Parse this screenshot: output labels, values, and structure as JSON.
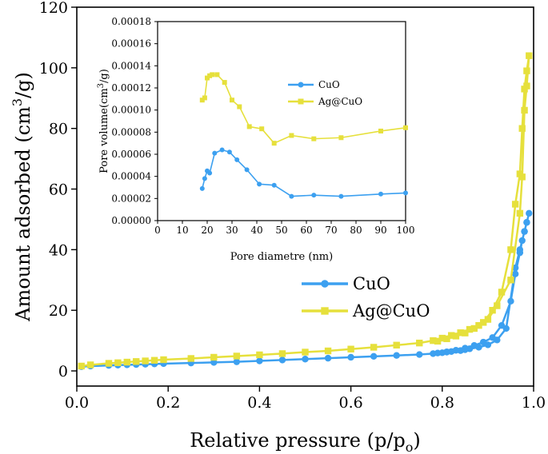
{
  "chart_data": [
    {
      "type": "line",
      "name": "isotherm",
      "xlabel": "Relative pressure (p/p",
      "xlabel_sub": "o",
      "xlabel_end": ")",
      "ylabel": "Amount adsorbed (cm",
      "ylabel_sup": "3",
      "ylabel_end": "/g)",
      "xlim": [
        0.0,
        1.0
      ],
      "ylim": [
        -5,
        120
      ],
      "xticks": [
        "0.0",
        "0.2",
        "0.4",
        "0.6",
        "0.8",
        "1.0"
      ],
      "xtick_values": [
        0.0,
        0.2,
        0.4,
        0.6,
        0.8,
        1.0
      ],
      "yticks": [
        "0",
        "20",
        "40",
        "60",
        "80",
        "100",
        "120"
      ],
      "ytick_values": [
        0,
        20,
        40,
        60,
        80,
        100,
        120
      ],
      "legend_position": "lower-right",
      "series": [
        {
          "name": "CuO",
          "color": "#3ca0f0",
          "marker": "circle",
          "x": [
            0.01,
            0.03,
            0.07,
            0.09,
            0.11,
            0.13,
            0.15,
            0.17,
            0.19,
            0.25,
            0.3,
            0.35,
            0.4,
            0.45,
            0.5,
            0.55,
            0.6,
            0.65,
            0.7,
            0.75,
            0.78,
            0.8,
            0.81,
            0.82,
            0.84,
            0.85,
            0.86,
            0.88,
            0.9,
            0.92,
            0.94,
            0.96,
            0.97,
            0.98,
            0.985,
            0.99,
            0.985,
            0.98,
            0.975,
            0.97,
            0.96,
            0.95,
            0.93,
            0.91,
            0.89,
            0.87,
            0.85,
            0.83,
            0.81,
            0.79
          ],
          "y": [
            1.4,
            1.6,
            1.8,
            1.9,
            2.0,
            2.1,
            2.2,
            2.3,
            2.4,
            2.6,
            2.8,
            3.0,
            3.3,
            3.6,
            3.9,
            4.2,
            4.5,
            4.8,
            5.1,
            5.4,
            5.7,
            6.0,
            6.2,
            6.4,
            6.7,
            7.0,
            7.3,
            7.8,
            8.6,
            10.2,
            14.0,
            34.0,
            40.0,
            46.0,
            49.0,
            52.0,
            49.0,
            46.0,
            43.0,
            39.0,
            32.0,
            23.0,
            15.0,
            11.0,
            9.5,
            8.4,
            7.5,
            6.8,
            6.3,
            5.9
          ]
        },
        {
          "name": "Ag@CuO",
          "color": "#e6e03c",
          "marker": "square",
          "x": [
            0.01,
            0.03,
            0.07,
            0.09,
            0.11,
            0.13,
            0.15,
            0.17,
            0.19,
            0.25,
            0.3,
            0.35,
            0.4,
            0.45,
            0.5,
            0.55,
            0.6,
            0.65,
            0.7,
            0.75,
            0.78,
            0.8,
            0.82,
            0.84,
            0.86,
            0.88,
            0.9,
            0.92,
            0.95,
            0.97,
            0.975,
            0.98,
            0.985,
            0.99,
            0.985,
            0.98,
            0.975,
            0.97,
            0.96,
            0.95,
            0.93,
            0.91,
            0.89,
            0.87,
            0.85,
            0.83,
            0.81,
            0.79
          ],
          "y": [
            1.6,
            2.0,
            2.5,
            2.7,
            2.9,
            3.1,
            3.3,
            3.5,
            3.7,
            4.1,
            4.5,
            4.9,
            5.3,
            5.7,
            6.2,
            6.6,
            7.2,
            7.8,
            8.5,
            9.2,
            10.0,
            10.8,
            11.7,
            12.6,
            13.7,
            15.0,
            17.0,
            21.5,
            30.0,
            52.0,
            64.0,
            86.0,
            94.0,
            104.0,
            99.0,
            93.0,
            80.0,
            65.0,
            55.0,
            40.0,
            26.0,
            20.0,
            16.0,
            14.0,
            12.5,
            11.5,
            10.6,
            9.8
          ]
        }
      ]
    },
    {
      "type": "line",
      "name": "pore-size-inset",
      "xlabel": "Pore diametre (nm)",
      "ylabel": "Pore volume(cm",
      "ylabel_sup": "3",
      "ylabel_end": "/g)",
      "xlim": [
        0,
        100
      ],
      "ylim": [
        0,
        0.00018
      ],
      "xticks": [
        "0",
        "10",
        "20",
        "30",
        "40",
        "50",
        "60",
        "70",
        "80",
        "90",
        "100"
      ],
      "xtick_values": [
        0,
        10,
        20,
        30,
        40,
        50,
        60,
        70,
        80,
        90,
        100
      ],
      "yticks": [
        "0.00000",
        "0.00002",
        "0.00004",
        "0.00006",
        "0.00008",
        "0.00010",
        "0.00012",
        "0.00014",
        "0.00016",
        "0.00018"
      ],
      "ytick_values": [
        0,
        2e-05,
        4e-05,
        6e-05,
        8e-05,
        0.0001,
        0.00012,
        0.00014,
        0.00016,
        0.00018
      ],
      "legend_position": "top-right",
      "series": [
        {
          "name": "CuO",
          "color": "#3ca0f0",
          "marker": "circle",
          "x": [
            18,
            19,
            20,
            21,
            23,
            26,
            29,
            32,
            36,
            41,
            47,
            54,
            63,
            74,
            90,
            100
          ],
          "y": [
            2.9e-05,
            3.8e-05,
            4.5e-05,
            4.3e-05,
            6.1e-05,
            6.4e-05,
            6.2e-05,
            5.5e-05,
            4.6e-05,
            3.3e-05,
            3.2e-05,
            2.2e-05,
            2.3e-05,
            2.2e-05,
            2.4e-05,
            2.5e-05
          ]
        },
        {
          "name": "Ag@CuO",
          "color": "#e6e03c",
          "marker": "square",
          "x": [
            18,
            19,
            20,
            21,
            22,
            24,
            27,
            30,
            33,
            37,
            42,
            47,
            54,
            63,
            74,
            90,
            100
          ],
          "y": [
            0.000109,
            0.000111,
            0.000129,
            0.000131,
            0.000132,
            0.000132,
            0.000125,
            0.000109,
            0.000103,
            8.5e-05,
            8.3e-05,
            7e-05,
            7.7e-05,
            7.4e-05,
            7.5e-05,
            8.1e-05,
            8.4e-05
          ]
        }
      ]
    }
  ]
}
